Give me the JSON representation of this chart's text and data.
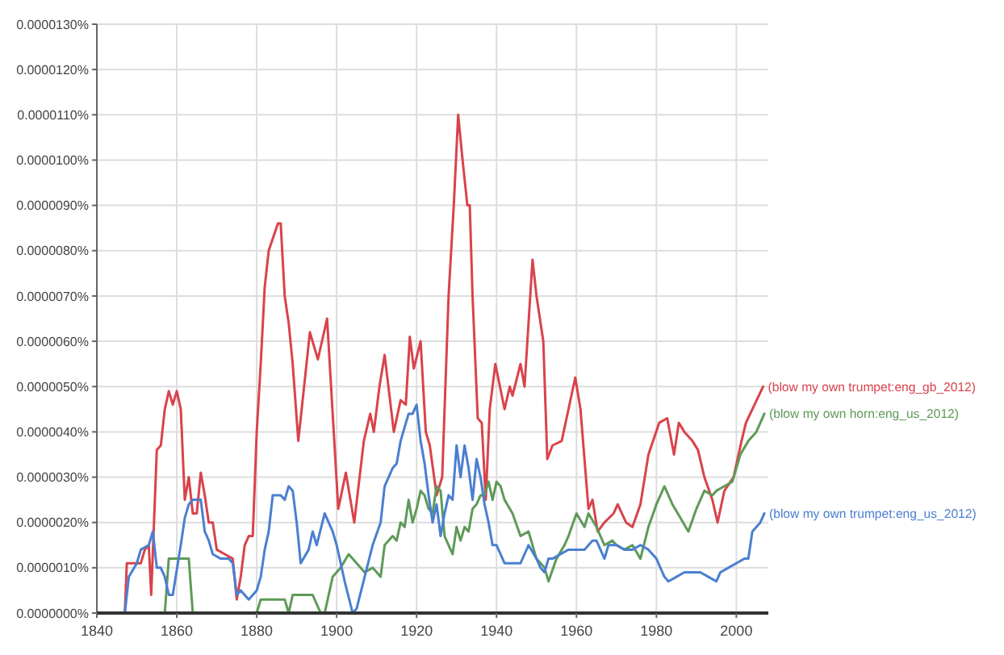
{
  "chart_data": {
    "type": "line",
    "xlim": [
      1840,
      2008
    ],
    "ylim": [
      0,
      1.3e-05
    ],
    "xticks": [
      1840,
      1860,
      1880,
      1900,
      1920,
      1940,
      1960,
      1980,
      2000
    ],
    "yticks": [
      {
        "value": 0,
        "label": "0.0000000%"
      },
      {
        "value": 1e-06,
        "label": "0.0000010%"
      },
      {
        "value": 2e-06,
        "label": "0.0000020%"
      },
      {
        "value": 3e-06,
        "label": "0.0000030%"
      },
      {
        "value": 4e-06,
        "label": "0.0000040%"
      },
      {
        "value": 5e-06,
        "label": "0.0000050%"
      },
      {
        "value": 6e-06,
        "label": "0.0000060%"
      },
      {
        "value": 7e-06,
        "label": "0.0000070%"
      },
      {
        "value": 8e-06,
        "label": "0.0000080%"
      },
      {
        "value": 9e-06,
        "label": "0.0000090%"
      },
      {
        "value": 1e-05,
        "label": "0.0000100%"
      },
      {
        "value": 1.1e-05,
        "label": "0.0000110%"
      },
      {
        "value": 1.2e-05,
        "label": "0.0000120%"
      },
      {
        "value": 1.3e-05,
        "label": "0.0000130%"
      }
    ],
    "grid": true,
    "marker": "none",
    "line_style": "solid",
    "series": [
      {
        "name": "(blow my own trumpet:eng_gb_2012)",
        "color": "#d9434b",
        "x": [
          1847,
          1847.5,
          1851,
          1852,
          1853,
          1853.6,
          1855,
          1856,
          1857,
          1858,
          1859,
          1860,
          1861,
          1862,
          1863,
          1864,
          1865,
          1866,
          1867,
          1868,
          1869,
          1870,
          1872,
          1874,
          1875,
          1876,
          1877,
          1878,
          1879,
          1880,
          1881,
          1882,
          1883,
          1885.3,
          1886,
          1887,
          1888,
          1889,
          1890.4,
          1893.3,
          1895.3,
          1897.6,
          1900.4,
          1902.3,
          1904.4,
          1906.8,
          1908.4,
          1909.3,
          1910.7,
          1912,
          1914.3,
          1916,
          1917.3,
          1918.3,
          1919.3,
          1921,
          1922.3,
          1923.3,
          1925,
          1926.4,
          1928,
          1929.3,
          1930.4,
          1931.5,
          1932.7,
          1933.3,
          1934,
          1935.3,
          1936.3,
          1937.3,
          1938.3,
          1939.7,
          1942,
          1943.3,
          1944,
          1946,
          1947,
          1949,
          1950,
          1951.7,
          1952.7,
          1954,
          1956.3,
          1958,
          1959.7,
          1961,
          1963,
          1964,
          1965.3,
          1967,
          1969.3,
          1970.3,
          1972.4,
          1974,
          1976,
          1978,
          1980.7,
          1982.7,
          1984.4,
          1985.6,
          1987,
          1989,
          1990.4,
          1992,
          1994,
          1995.3,
          1997,
          1999.3,
          2001.3,
          2002.4,
          2004,
          2006.7
        ],
        "values": [
          0,
          1.1e-06,
          1.1e-06,
          1.4e-06,
          1.5e-06,
          4e-07,
          3.6e-06,
          3.7e-06,
          4.5e-06,
          4.9e-06,
          4.6e-06,
          4.9e-06,
          4.5e-06,
          2.5e-06,
          3e-06,
          2.2e-06,
          2.2e-06,
          3.1e-06,
          2.6e-06,
          2e-06,
          2e-06,
          1.4e-06,
          1.3e-06,
          1.2e-06,
          3e-07,
          8e-07,
          1.5e-06,
          1.7e-06,
          1.7e-06,
          4e-06,
          5.5e-06,
          7.2e-06,
          8e-06,
          8.6e-06,
          8.6e-06,
          7e-06,
          6.4e-06,
          5.5e-06,
          3.8e-06,
          6.2e-06,
          5.6e-06,
          6.5e-06,
          2.3e-06,
          3.1e-06,
          2e-06,
          3.8e-06,
          4.4e-06,
          4e-06,
          5e-06,
          5.7e-06,
          4e-06,
          4.7e-06,
          4.6e-06,
          6.1e-06,
          5.4e-06,
          6e-06,
          4e-06,
          3.7e-06,
          2.6e-06,
          3e-06,
          7e-06,
          9e-06,
          1.1e-05,
          1e-05,
          9e-06,
          9e-06,
          7e-06,
          4.3e-06,
          4.2e-06,
          2.5e-06,
          4.5e-06,
          5.5e-06,
          4.5e-06,
          5e-06,
          4.8e-06,
          5.5e-06,
          5e-06,
          7.8e-06,
          7e-06,
          6e-06,
          3.4e-06,
          3.7e-06,
          3.8e-06,
          4.5e-06,
          5.2e-06,
          4.5e-06,
          2.3e-06,
          2.5e-06,
          1.8e-06,
          2e-06,
          2.2e-06,
          2.4e-06,
          2e-06,
          1.9e-06,
          2.4e-06,
          3.5e-06,
          4.2e-06,
          4.3e-06,
          3.5e-06,
          4.2e-06,
          4e-06,
          3.8e-06,
          3.6e-06,
          3e-06,
          2.5e-06,
          2e-06,
          2.7e-06,
          3e-06,
          3.8e-06,
          4.2e-06,
          4.5e-06,
          5e-06
        ]
      },
      {
        "name": "(blow my own horn:eng_us_2012)",
        "color": "#5e9a58",
        "x": [
          1840,
          1857,
          1858,
          1863,
          1864,
          1880,
          1881,
          1887,
          1888,
          1889,
          1894,
          1896,
          1897,
          1899,
          1901,
          1903,
          1905,
          1907,
          1909,
          1911,
          1912,
          1914,
          1915,
          1916,
          1917,
          1918,
          1919,
          1920,
          1921,
          1922,
          1923,
          1924,
          1925,
          1926,
          1927,
          1928,
          1929,
          1930,
          1931,
          1932,
          1933,
          1934,
          1935,
          1936,
          1937,
          1938,
          1939,
          1940,
          1941,
          1942,
          1944,
          1946,
          1948,
          1950,
          1952,
          1953,
          1955,
          1957,
          1958,
          1960,
          1962,
          1963,
          1965,
          1967,
          1969,
          1970,
          1972,
          1974,
          1976,
          1978,
          1980,
          1982,
          1984,
          1986,
          1988,
          1990,
          1992,
          1994,
          1995,
          1997,
          1999,
          2001,
          2003,
          2005,
          2007
        ],
        "values": [
          0,
          0,
          1.2e-06,
          1.2e-06,
          0,
          0,
          3e-07,
          3e-07,
          0,
          4e-07,
          4e-07,
          0,
          0,
          8e-07,
          1e-06,
          1.3e-06,
          1.1e-06,
          9e-07,
          1e-06,
          8e-07,
          1.5e-06,
          1.7e-06,
          1.6e-06,
          2e-06,
          1.9e-06,
          2.5e-06,
          2e-06,
          2.3e-06,
          2.7e-06,
          2.6e-06,
          2.3e-06,
          2.2e-06,
          2.8e-06,
          2.7e-06,
          1.7e-06,
          1.5e-06,
          1.3e-06,
          1.9e-06,
          1.6e-06,
          1.9e-06,
          1.8e-06,
          2.3e-06,
          2.4e-06,
          2.6e-06,
          2.6e-06,
          2.9e-06,
          2.5e-06,
          2.9e-06,
          2.8e-06,
          2.5e-06,
          2.2e-06,
          1.7e-06,
          1.8e-06,
          1.2e-06,
          1e-06,
          7e-07,
          1.2e-06,
          1.5e-06,
          1.7e-06,
          2.2e-06,
          1.9e-06,
          2.2e-06,
          1.9e-06,
          1.5e-06,
          1.6e-06,
          1.5e-06,
          1.4e-06,
          1.5e-06,
          1.2e-06,
          1.9e-06,
          2.4e-06,
          2.8e-06,
          2.4e-06,
          2.1e-06,
          1.8e-06,
          2.3e-06,
          2.7e-06,
          2.6e-06,
          2.7e-06,
          2.8e-06,
          2.9e-06,
          3.5e-06,
          3.8e-06,
          4e-06,
          4.4e-06
        ]
      },
      {
        "name": "(blow my own trumpet:eng_us_2012)",
        "color": "#4a7fd0",
        "x": [
          1847,
          1848,
          1850,
          1851,
          1853,
          1854,
          1855,
          1856,
          1857,
          1858,
          1859,
          1861,
          1862,
          1863,
          1864,
          1866,
          1867,
          1868,
          1869,
          1871,
          1873,
          1874,
          1875,
          1876,
          1878,
          1880,
          1881,
          1882,
          1883,
          1884,
          1886,
          1887,
          1888,
          1889,
          1890,
          1891,
          1893,
          1894,
          1895,
          1897,
          1899,
          1900,
          1902,
          1904,
          1905,
          1907,
          1909,
          1911,
          1912,
          1914,
          1915,
          1916,
          1918,
          1919,
          1920,
          1921,
          1922,
          1923,
          1924,
          1925,
          1926,
          1927,
          1928,
          1929,
          1930,
          1931,
          1932,
          1933,
          1934,
          1935,
          1936,
          1937,
          1938,
          1939,
          1940,
          1942,
          1944,
          1946,
          1947,
          1948,
          1950,
          1951,
          1952,
          1953,
          1954,
          1956,
          1958,
          1960,
          1962,
          1964,
          1965,
          1967,
          1968,
          1970,
          1972,
          1974,
          1976,
          1978,
          1980,
          1982,
          1983,
          1985,
          1987,
          1989,
          1991,
          1993,
          1995,
          1996,
          1998,
          2000,
          2002,
          2003,
          2004,
          2006,
          2007
        ],
        "values": [
          0,
          8e-07,
          1.1e-06,
          1.4e-06,
          1.5e-06,
          1.8e-06,
          1e-06,
          1e-06,
          8e-07,
          4e-07,
          4e-07,
          1.5e-06,
          2.1e-06,
          2.4e-06,
          2.5e-06,
          2.5e-06,
          1.8e-06,
          1.6e-06,
          1.3e-06,
          1.2e-06,
          1.2e-06,
          1.1e-06,
          4e-07,
          5e-07,
          3e-07,
          5e-07,
          8e-07,
          1.4e-06,
          1.8e-06,
          2.6e-06,
          2.6e-06,
          2.5e-06,
          2.8e-06,
          2.7e-06,
          2e-06,
          1.1e-06,
          1.4e-06,
          1.8e-06,
          1.5e-06,
          2.2e-06,
          1.8e-06,
          1.5e-06,
          7e-07,
          0,
          1e-07,
          8e-07,
          1.5e-06,
          2e-06,
          2.8e-06,
          3.2e-06,
          3.3e-06,
          3.8e-06,
          4.4e-06,
          4.4e-06,
          4.6e-06,
          3.8e-06,
          3.3e-06,
          2.6e-06,
          2e-06,
          2.4e-06,
          1.7e-06,
          2.2e-06,
          2.6e-06,
          2.5e-06,
          3.7e-06,
          3e-06,
          3.7e-06,
          3.2e-06,
          2.5e-06,
          3.4e-06,
          3e-06,
          2.4e-06,
          2e-06,
          1.5e-06,
          1.5e-06,
          1.1e-06,
          1.1e-06,
          1.1e-06,
          1.3e-06,
          1.5e-06,
          1.2e-06,
          1e-06,
          9e-07,
          1.2e-06,
          1.2e-06,
          1.3e-06,
          1.4e-06,
          1.4e-06,
          1.4e-06,
          1.6e-06,
          1.6e-06,
          1.2e-06,
          1.5e-06,
          1.5e-06,
          1.4e-06,
          1.4e-06,
          1.5e-06,
          1.4e-06,
          1.2e-06,
          8e-07,
          7e-07,
          8e-07,
          9e-07,
          9e-07,
          9e-07,
          8e-07,
          7e-07,
          9e-07,
          1e-06,
          1.1e-06,
          1.2e-06,
          1.2e-06,
          1.8e-06,
          2e-06,
          2.2e-06
        ]
      }
    ]
  }
}
